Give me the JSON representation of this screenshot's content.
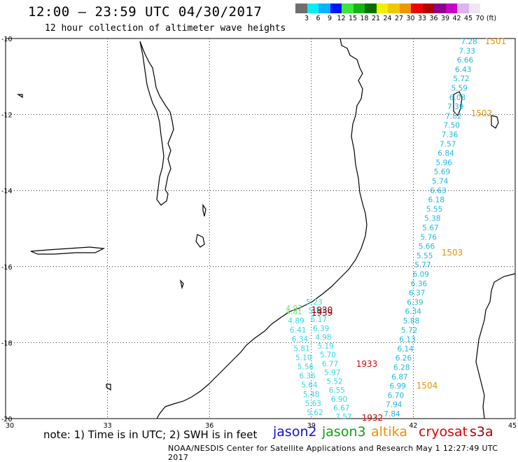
{
  "header": {
    "title": "12:00 – 23:59 UTC 04/30/2017",
    "subtitle": "12 hour collection of altimeter wave heights"
  },
  "legend": {
    "colors": [
      "#6e6e6e",
      "#00f0f0",
      "#00b4ff",
      "#0014ff",
      "#3ce63c",
      "#14b414",
      "#006e00",
      "#f0f000",
      "#f0c800",
      "#f09600",
      "#f00000",
      "#b40000",
      "#8c008c",
      "#c800c8",
      "#dcb4f0",
      "#f0e6f0"
    ],
    "labels": [
      "3",
      "6",
      "9",
      "12",
      "15",
      "18",
      "21",
      "24",
      "27",
      "30",
      "33",
      "36",
      "39",
      "42",
      "45",
      "70",
      "(ft)"
    ]
  },
  "axes": {
    "lon_labels": [
      "30",
      "33",
      "36",
      "39",
      "42",
      "45"
    ],
    "lat_labels": [
      "-10",
      "-12",
      "-14",
      "-16",
      "-18",
      "-20"
    ]
  },
  "footer": {
    "note": "note: 1) Time is in UTC; 2) SWH is in feet",
    "satellites": [
      {
        "name": "jason2",
        "color": "#1010e0"
      },
      {
        "name": "jason3",
        "color": "#10a010"
      },
      {
        "name": "altika",
        "color": "#f09000"
      },
      {
        "name": "cryosat",
        "color": "#e00000"
      },
      {
        "name": "s3a",
        "color": "#b00000"
      }
    ],
    "credit": "NOAA/NESDIS Center for Satellite Applications and Research   May  1 12:27:49 UTC 2017"
  },
  "colors": {
    "track_cyan": "#22b8dc",
    "track_light": "#33d8e8",
    "time_orange": "#f09000",
    "time_red": "#e00000",
    "time_darkred": "#900000",
    "jason3_green": "#7cd87c"
  },
  "tracks": {
    "east_track": {
      "values": [
        "7.28",
        "7.33",
        "6.66",
        "6.43",
        "5.72",
        "5.59",
        "6.03",
        "7.39",
        "7.82",
        "7.50",
        "7.36",
        "7.57",
        "6.84",
        "5.96",
        "5.69",
        "5.74",
        "6.63",
        "6.18",
        "5.55",
        "5.38",
        "5.67",
        "5.76",
        "5.66",
        "5.55",
        "5.77",
        "6.09",
        "6.36",
        "6.37",
        "6.39",
        "6.34",
        "5.88",
        "5.72",
        "6.13",
        "6.14",
        "6.26",
        "6.28",
        "6.87",
        "6.99",
        "6.70",
        "7.94",
        "7.84"
      ]
    },
    "mid_track": {
      "values": [
        "5.23",
        "5.30",
        "6.17",
        "6.39",
        "4.98",
        "5.19",
        "5.70",
        "6.77",
        "5.97",
        "5.52",
        "6.55",
        "6.90",
        "6.67",
        "7.57"
      ]
    },
    "west_track": {
      "values": [
        "4.89",
        "6.41",
        "6.34",
        "5.81",
        "5.10",
        "5.56",
        "6.36",
        "5.64",
        "5.48",
        "5.63",
        "5.62"
      ]
    },
    "green_values": [
      "4.97",
      "4.81"
    ],
    "times": [
      {
        "text": "1501"
      },
      {
        "text": "1502"
      },
      {
        "text": "1503"
      },
      {
        "text": "1504"
      },
      {
        "text": "1933"
      },
      {
        "text": "1932"
      },
      {
        "text": "1930"
      },
      {
        "text": "1939"
      }
    ]
  }
}
